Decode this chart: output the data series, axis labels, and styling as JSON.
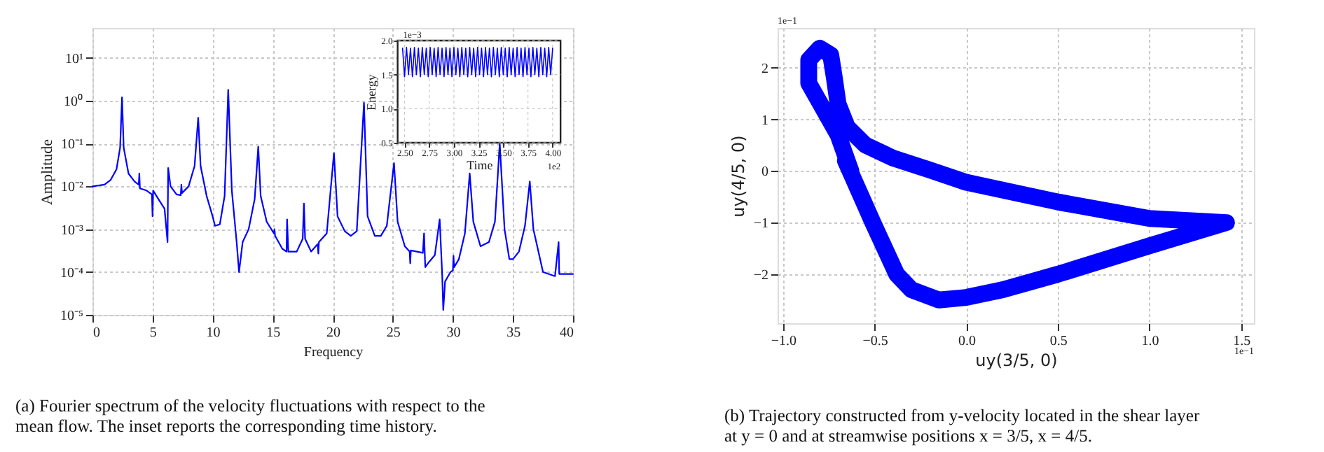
{
  "chart_data": [
    {
      "type": "line",
      "xlabel": "Frequency",
      "ylabel": "Amplitude",
      "log": "y",
      "grid": true,
      "color": "#0000ff",
      "xlim": [
        0,
        40
      ],
      "xticks": [
        0,
        5,
        10,
        15,
        20,
        25,
        30,
        35,
        40
      ],
      "ylim": [
        1e-05,
        50
      ],
      "yticks": [
        {
          "value": 1e-05,
          "label": "10⁻⁵"
        },
        {
          "value": 0.0001,
          "label": "10⁻⁴"
        },
        {
          "value": 0.001,
          "label": "10⁻³"
        },
        {
          "value": 0.01,
          "label": "10⁻²"
        },
        {
          "value": 0.1,
          "label": "10⁻¹"
        },
        {
          "value": 1,
          "label": "10⁰"
        },
        {
          "value": 10,
          "label": "10¹"
        }
      ],
      "x": [
        0,
        1,
        1.5,
        2,
        2.3,
        2.46,
        2.6,
        3,
        3.5,
        3.85,
        3.9,
        3.95,
        4.5,
        4.95,
        5.0,
        5.05,
        5.5,
        6.0,
        6.25,
        6.3,
        6.5,
        7.0,
        7.35,
        7.4,
        7.45,
        8.0,
        8.5,
        8.8,
        9.0,
        9.5,
        10.0,
        10.2,
        10.6,
        11.0,
        11.3,
        11.6,
        12.0,
        12.2,
        12.5,
        13.0,
        13.5,
        13.8,
        14.0,
        14.5,
        15.1,
        15.15,
        15.2,
        15.8,
        16.15,
        16.2,
        16.3,
        17.0,
        17.5,
        17.6,
        17.7,
        18.2,
        18.75,
        18.8,
        18.85,
        19.5,
        20.1,
        20.4,
        21.0,
        21.5,
        22.0,
        22.6,
        22.9,
        23.5,
        24.0,
        24.5,
        25.1,
        25.4,
        26.0,
        26.4,
        26.45,
        26.5,
        27.0,
        27.5,
        27.6,
        27.7,
        28.0,
        28.5,
        28.9,
        29.1,
        29.2,
        29.35,
        29.8,
        30.0,
        30.05,
        30.1,
        30.5,
        31.0,
        31.4,
        31.7,
        32.3,
        33.0,
        33.5,
        33.9,
        34.3,
        34.7,
        35.0,
        35.5,
        36.0,
        36.4,
        36.7,
        37.5,
        38.5,
        38.8,
        38.85,
        39.5,
        40
      ],
      "values": [
        0.01,
        0.011,
        0.014,
        0.025,
        0.08,
        1.2,
        0.08,
        0.02,
        0.013,
        0.011,
        0.02,
        0.009,
        0.008,
        0.0065,
        0.002,
        0.008,
        0.005,
        0.003,
        0.0005,
        0.027,
        0.01,
        0.0065,
        0.0062,
        0.011,
        0.007,
        0.01,
        0.03,
        0.4,
        0.03,
        0.006,
        0.002,
        0.0012,
        0.0013,
        0.006,
        1.8,
        0.008,
        0.0005,
        0.0001,
        0.0005,
        0.001,
        0.005,
        0.085,
        0.006,
        0.0015,
        0.0008,
        0.001,
        0.0007,
        0.00035,
        0.0003,
        0.0017,
        0.0003,
        0.0003,
        0.0006,
        0.004,
        0.0006,
        0.0003,
        0.00045,
        0.00027,
        0.0005,
        0.0008,
        0.06,
        0.002,
        0.0009,
        0.0007,
        0.0009,
        0.9,
        0.002,
        0.0007,
        0.0007,
        0.0012,
        0.035,
        0.0015,
        0.0004,
        0.0003,
        0.00016,
        0.00032,
        0.0003,
        0.00028,
        0.0008,
        0.00013,
        0.00017,
        0.00025,
        0.0017,
        0.0001,
        1.3e-05,
        6e-05,
        0.0001,
        0.00011,
        0.00024,
        0.00013,
        0.0002,
        0.0008,
        0.02,
        0.0015,
        0.0004,
        0.0005,
        0.0015,
        0.1,
        0.001,
        0.0002,
        0.0002,
        0.0003,
        0.0012,
        0.013,
        0.001,
        0.0001,
        8e-05,
        0.0005,
        9e-05,
        9e-05,
        9e-05
      ],
      "annotations": [
        "(a) Fourier spectrum of the velocity fluctuations with respect to the mean flow. The inset reports the corresponding time history."
      ]
    },
    {
      "type": "line",
      "xlabel": "Time",
      "ylabel": "Energy",
      "grid": true,
      "color": "#0000ff",
      "xlim": [
        2.43,
        4.08
      ],
      "ylim": [
        0.5,
        2.0
      ],
      "xticks": [
        {
          "value": 2.5,
          "label": "2.50"
        },
        {
          "value": 2.75,
          "label": "2.75"
        },
        {
          "value": 3,
          "label": "3.00"
        },
        {
          "value": 3.25,
          "label": "3.25"
        },
        {
          "value": 3.5,
          "label": "3.50"
        },
        {
          "value": 3.75,
          "label": "3.75"
        },
        {
          "value": 4,
          "label": "4.00"
        }
      ],
      "yticks": [
        0.5,
        {
          "value": 1,
          "label": "1.0"
        },
        1.5,
        {
          "value": 2,
          "label": "2.0"
        }
      ],
      "x": [
        2.48,
        2.5,
        2.52,
        2.54,
        2.56,
        2.58,
        2.6,
        2.62,
        2.64,
        2.66,
        2.68,
        2.7,
        2.72,
        2.74,
        2.76,
        2.78,
        2.8,
        2.82,
        2.84,
        2.86,
        2.88,
        2.9,
        2.92,
        2.94,
        2.96,
        2.98,
        3.0,
        3.02,
        3.04,
        3.06,
        3.08,
        3.1,
        3.12,
        3.14,
        3.16,
        3.18,
        3.2,
        3.22,
        3.24,
        3.26,
        3.28,
        3.3,
        3.32,
        3.34,
        3.36,
        3.38,
        3.4,
        3.42,
        3.44,
        3.46,
        3.48,
        3.5,
        3.52,
        3.54,
        3.56,
        3.58,
        3.6,
        3.62,
        3.64,
        3.66,
        3.68,
        3.7,
        3.72,
        3.74,
        3.76,
        3.78,
        3.8,
        3.82,
        3.84,
        3.86,
        3.88,
        3.9,
        3.92,
        3.94,
        3.96,
        3.98,
        4.0
      ],
      "values": [
        1.89,
        1.47,
        1.9,
        1.5,
        1.89,
        1.47,
        1.9,
        1.5,
        1.89,
        1.47,
        1.9,
        1.5,
        1.89,
        1.47,
        1.9,
        1.5,
        1.89,
        1.47,
        1.9,
        1.5,
        1.89,
        1.47,
        1.9,
        1.5,
        1.89,
        1.47,
        1.9,
        1.5,
        1.89,
        1.47,
        1.9,
        1.5,
        1.89,
        1.47,
        1.9,
        1.5,
        1.89,
        1.47,
        1.9,
        1.5,
        1.89,
        1.47,
        1.9,
        1.5,
        1.89,
        1.47,
        1.9,
        1.5,
        1.89,
        1.47,
        1.9,
        1.5,
        1.89,
        1.47,
        1.9,
        1.5,
        1.89,
        1.47,
        1.9,
        1.5,
        1.89,
        1.47,
        1.9,
        1.5,
        1.89,
        1.47,
        1.9,
        1.5,
        1.89,
        1.47,
        1.9,
        1.5,
        1.89,
        1.47,
        1.9,
        1.5,
        1.89
      ],
      "annotations": [
        "1e−3",
        "1e2"
      ]
    },
    {
      "type": "line",
      "xlabel": "uy(3/5, 0)",
      "ylabel": "uy(4/5, 0)",
      "grid": true,
      "color": "#0000ff",
      "xlim": [
        -1.03,
        1.57
      ],
      "ylim": [
        -2.95,
        2.77
      ],
      "xticks": [
        {
          "value": -1,
          "label": "−1.0"
        },
        {
          "value": -0.5,
          "label": "−0.5"
        },
        {
          "value": 0,
          "label": "0.0"
        },
        0.5,
        {
          "value": 1,
          "label": "1.0"
        },
        1.5
      ],
      "yticks": [
        {
          "value": -2,
          "label": "−2"
        },
        {
          "value": -1,
          "label": "−1"
        },
        0,
        1,
        2
      ],
      "x": [
        -0.63,
        -0.7,
        -0.78,
        -0.86,
        -0.86,
        -0.8,
        -0.74,
        -0.72,
        -0.7,
        -0.65,
        -0.55,
        -0.4,
        -0.2,
        0.0,
        0.5,
        1.0,
        1.42,
        1.0,
        0.5,
        0.2,
        0.0,
        -0.15,
        -0.3,
        -0.38,
        -0.51,
        -0.66
      ],
      "values": [
        0.0,
        0.7,
        1.2,
        1.7,
        2.15,
        2.38,
        2.25,
        1.8,
        1.3,
        0.85,
        0.5,
        0.25,
        0.02,
        -0.22,
        -0.6,
        -0.92,
        -1.0,
        -1.45,
        -2.0,
        -2.3,
        -2.45,
        -2.5,
        -2.3,
        -2.0,
        -1.0,
        0.2
      ],
      "annotations": [
        "1e−1",
        "1e−1",
        "(b) Trajectory constructed from y-velocity located in the shear layer at y = 0 and at streamwise positions x = 3/5, x = 4/5."
      ]
    }
  ]
}
